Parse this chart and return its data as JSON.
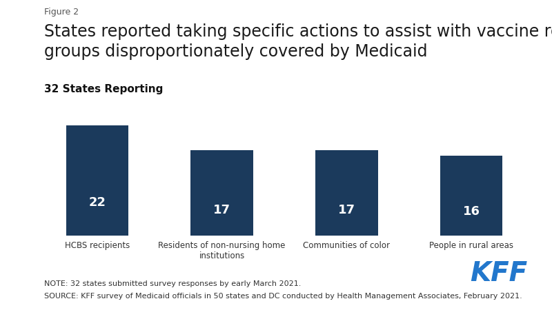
{
  "figure_label": "Figure 2",
  "title": "States reported taking specific actions to assist with vaccine roll-out to\ngroups disproportionately covered by Medicaid",
  "subtitle": "32 States Reporting",
  "categories": [
    "HCBS recipients",
    "Residents of non-nursing home\ninstitutions",
    "Communities of color",
    "People in rural areas"
  ],
  "values": [
    22,
    17,
    17,
    16
  ],
  "bar_color": "#1b3a5c",
  "bar_value_color": "#ffffff",
  "ylim": [
    0,
    26
  ],
  "note_line1": "NOTE: 32 states submitted survey responses by early March 2021.",
  "note_line2": "SOURCE: KFF survey of Medicaid officials in 50 states and DC conducted by Health Management Associates, February 2021.",
  "kff_color": "#2277cc",
  "background_color": "#ffffff",
  "figure_label_fontsize": 9,
  "title_fontsize": 17,
  "subtitle_fontsize": 11,
  "bar_label_fontsize": 13,
  "tick_label_fontsize": 8.5,
  "note_fontsize": 8
}
